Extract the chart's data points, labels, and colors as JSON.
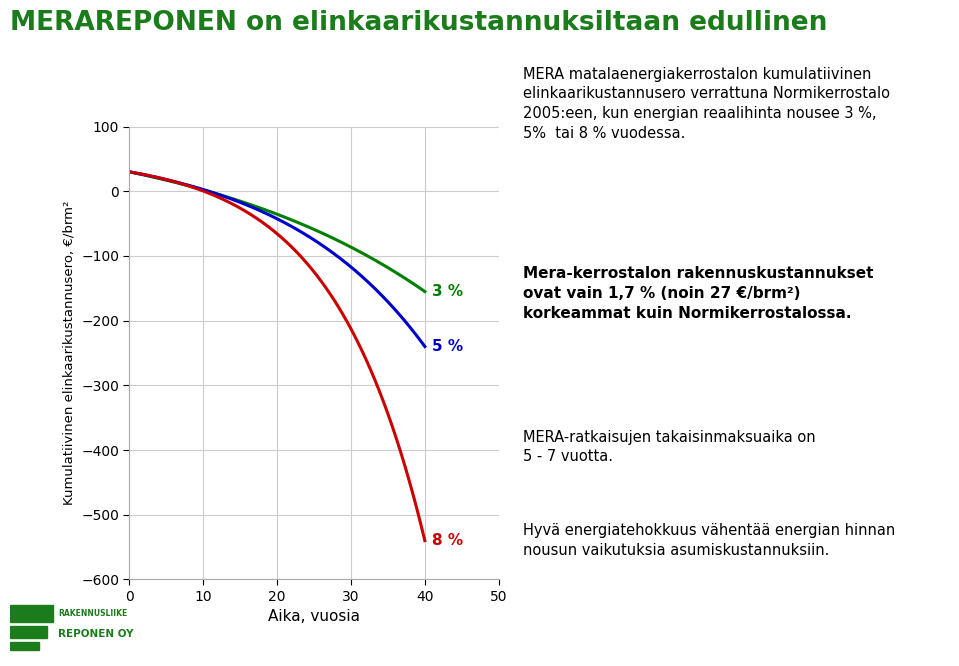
{
  "title": "MERAREPONEN on elinkaarikustannuksiltaan edullinen",
  "title_color": "#1a7c1a",
  "ylabel": "Kumulatiivinen elinkaarikustannusero, €/brm²",
  "xlabel": "Aika, vuosia",
  "xlim": [
    0,
    50
  ],
  "ylim": [
    -600,
    100
  ],
  "yticks": [
    100,
    0,
    -100,
    -200,
    -300,
    -400,
    -500,
    -600
  ],
  "xticks": [
    0,
    10,
    20,
    30,
    40,
    50
  ],
  "start_value": 30,
  "end_x": 40,
  "end_values": {
    "3": -155,
    "5": -240,
    "8": -540
  },
  "line_colors": {
    "3": "#008000",
    "5": "#0000cc",
    "8": "#cc0000"
  },
  "label_3": "3 %",
  "label_5": "5 %",
  "label_8": "8 %",
  "text_block1": "MERA matalaenergiakerrostalon kumulatiivinen\nelinkaarikustannusero verrattuna Normikerrostalo\n2005:een, kun energian reaalihinta nousee 3 %,\n5%  tai 8 % vuodessa.",
  "text_block2": "Mera-kerrostalon rakennuskustannukset\novat vain 1,7 % (noin 27 €/brm²)\nkorkeammat kuin Normikerrostalossa.",
  "text_block3": "MERA-ratkaisujen takaisinmaksuaika on\n5 - 7 vuotta.",
  "text_block4": "Hyvä energiatehokkuus vähentää energian hinnan\nnousun vaikutuksia asumiskustannuksiin.",
  "bg_color": "#ffffff",
  "grid_color": "#cccccc"
}
